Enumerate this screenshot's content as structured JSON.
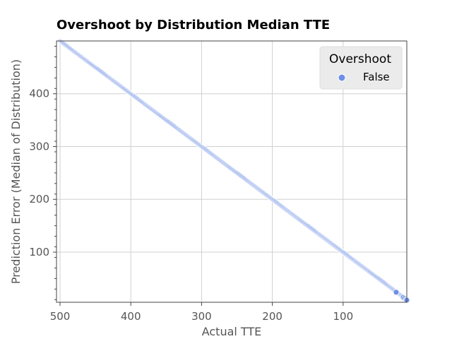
{
  "chart_data": {
    "type": "scatter",
    "title": "Overshoot by Distribution Median TTE",
    "xlabel": "Actual TTE",
    "ylabel": "Prediction Error (Median of Distribution)",
    "xlim": [
      505,
      10
    ],
    "ylim": [
      5,
      500
    ],
    "x_reversed": true,
    "xticks": [
      500,
      400,
      300,
      200,
      100
    ],
    "yticks": [
      100,
      200,
      300,
      400
    ],
    "grid": true,
    "legend": {
      "title": "Overshoot",
      "placement": "top-right",
      "entries": [
        {
          "label": "False",
          "color": "#6d8fe6"
        }
      ]
    },
    "series": [
      {
        "name": "False",
        "color": "#6d8fe6",
        "x_range": [
          500,
          10
        ],
        "relation": "y = x",
        "points_step": 1,
        "highlighted_points": [
          [
            25,
            24
          ],
          [
            15,
            14
          ],
          [
            13,
            12
          ],
          [
            11,
            10
          ],
          [
            10,
            9
          ]
        ]
      }
    ]
  }
}
